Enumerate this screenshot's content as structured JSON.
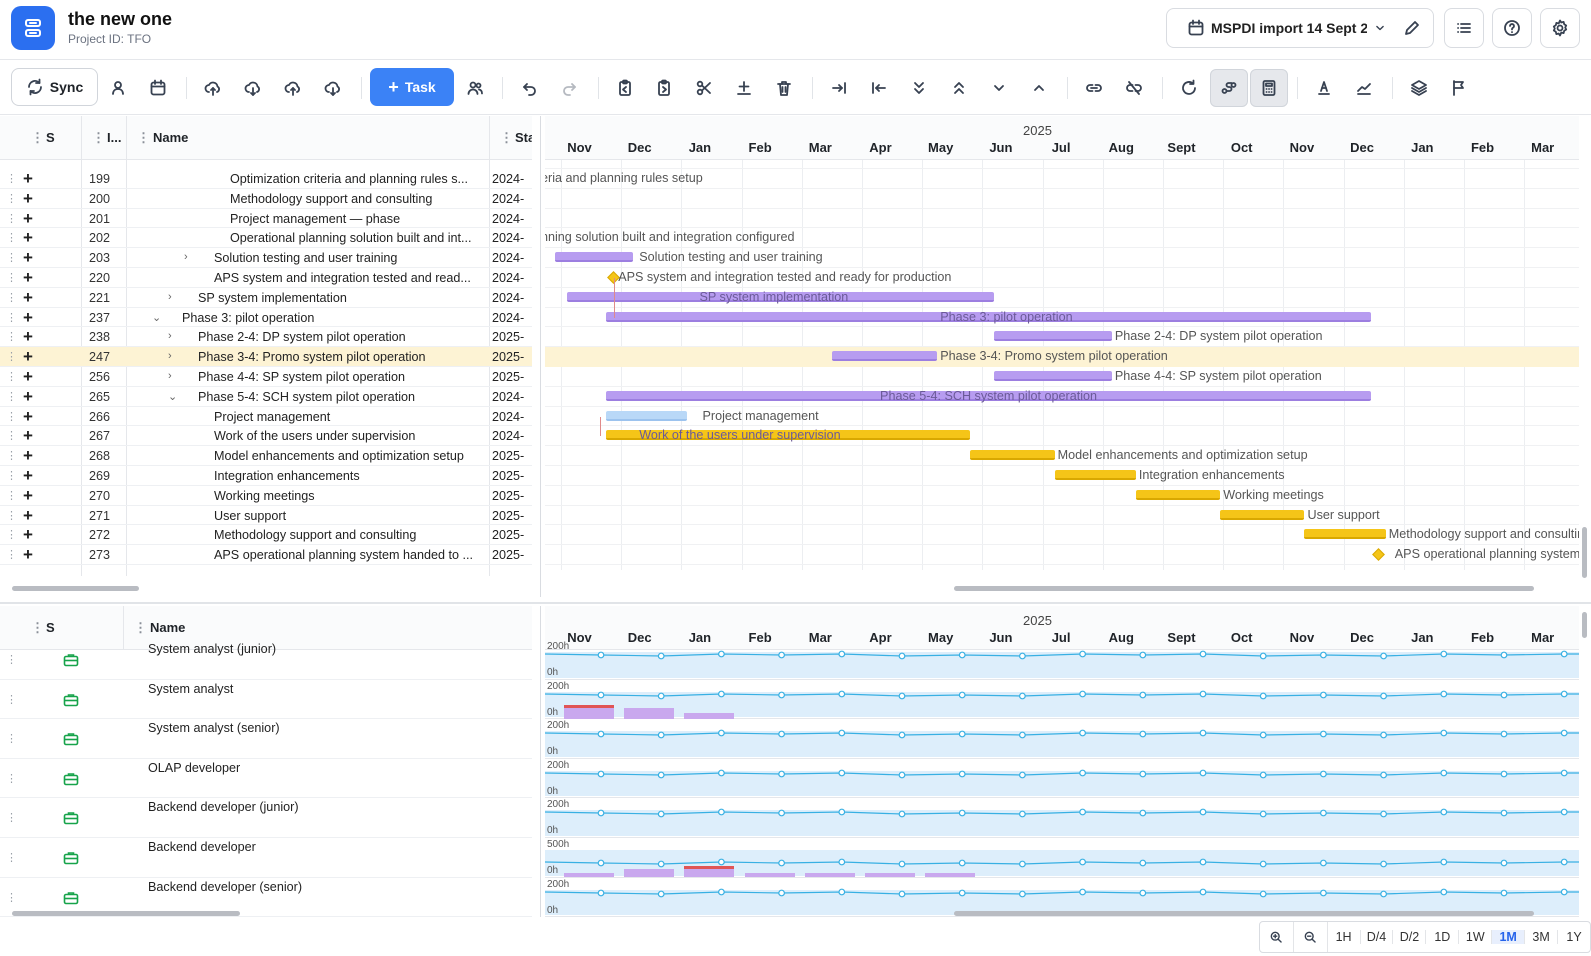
{
  "project": {
    "title": "the new one",
    "id_label": "Project ID: TFO"
  },
  "header": {
    "import_label": "MSPDI import 14 Sept 2..."
  },
  "toolbar": {
    "sync_label": "Sync",
    "task_label": "Task"
  },
  "grid": {
    "headers": {
      "status": "S",
      "id": "I...",
      "name": "Name",
      "start": "Sta"
    },
    "rows": [
      {
        "id": "199",
        "name": "Optimization criteria and planning rules s...",
        "start": "2024-",
        "indent": 3,
        "chev": ""
      },
      {
        "id": "200",
        "name": "Methodology support and consulting",
        "start": "2024-",
        "indent": 3,
        "chev": ""
      },
      {
        "id": "201",
        "name": "Project management — phase",
        "start": "2024-",
        "indent": 3,
        "chev": ""
      },
      {
        "id": "202",
        "name": "Operational planning solution built and int...",
        "start": "2024-",
        "indent": 3,
        "chev": ""
      },
      {
        "id": "203",
        "name": "Solution testing and user training",
        "start": "2024-",
        "indent": 2,
        "chev": "›"
      },
      {
        "id": "220",
        "name": "APS system and integration tested and read...",
        "start": "2024-",
        "indent": 2,
        "chev": ""
      },
      {
        "id": "221",
        "name": "SP system implementation",
        "start": "2024-",
        "indent": 1,
        "chev": "›"
      },
      {
        "id": "237",
        "name": "Phase 3: pilot operation",
        "start": "2024-",
        "indent": 0,
        "chev": "⌄"
      },
      {
        "id": "238",
        "name": "Phase 2-4: DP system pilot operation",
        "start": "2025-",
        "indent": 1,
        "chev": "›"
      },
      {
        "id": "247",
        "name": "Phase 3-4: Promo system pilot operation",
        "start": "2025-",
        "indent": 1,
        "chev": "›"
      },
      {
        "id": "256",
        "name": "Phase 4-4: SP system pilot operation",
        "start": "2025-",
        "indent": 1,
        "chev": "›"
      },
      {
        "id": "265",
        "name": "Phase 5-4: SCH system pilot operation",
        "start": "2024-",
        "indent": 1,
        "chev": "⌄"
      },
      {
        "id": "266",
        "name": "Project management",
        "start": "2024-",
        "indent": 2,
        "chev": ""
      },
      {
        "id": "267",
        "name": "Work of the users under supervision",
        "start": "2024-",
        "indent": 2,
        "chev": ""
      },
      {
        "id": "268",
        "name": "Model enhancements and optimization setup",
        "start": "2025-",
        "indent": 2,
        "chev": ""
      },
      {
        "id": "269",
        "name": "Integration enhancements",
        "start": "2025-",
        "indent": 2,
        "chev": ""
      },
      {
        "id": "270",
        "name": "Working meetings",
        "start": "2025-",
        "indent": 2,
        "chev": ""
      },
      {
        "id": "271",
        "name": "User support",
        "start": "2025-",
        "indent": 2,
        "chev": ""
      },
      {
        "id": "272",
        "name": "Methodology support and consulting",
        "start": "2025-",
        "indent": 2,
        "chev": ""
      },
      {
        "id": "273",
        "name": "APS operational planning system handed to ...",
        "start": "2025-",
        "indent": 2,
        "chev": ""
      }
    ]
  },
  "timeline": {
    "year": "2025",
    "months": [
      "Nov",
      "Dec",
      "Jan",
      "Feb",
      "Mar",
      "Apr",
      "May",
      "Jun",
      "Jul",
      "Aug",
      "Sept",
      "Oct",
      "Nov",
      "Dec",
      "Jan",
      "Feb",
      "Mar"
    ],
    "labels": {
      "l199": "eria and planning rules setup",
      "l202": "nning solution built and integration configured",
      "l203": "Solution testing and user training",
      "l220": "APS system and integration tested and ready for production",
      "l221": "SP system implementation",
      "l237": "Phase 3: pilot operation",
      "l238": "Phase 2-4: DP system pilot operation",
      "l247": "Phase 3-4: Promo system pilot operation",
      "l256": "Phase 4-4: SP system pilot operation",
      "l265": "Phase 5-4: SCH system pilot operation",
      "l266": "Project management",
      "l267": "Work of the users under supervision",
      "l268": "Model enhancements and optimization setup",
      "l269": "Integration enhancements",
      "l270": "Working meetings",
      "l271": "User support",
      "l272": "Methodology support and consultin",
      "l273": "APS operational planning system h"
    }
  },
  "resources": {
    "headers": {
      "status": "S",
      "name": "Name"
    },
    "rows": [
      {
        "name": "System analyst (junior)",
        "max": "200h",
        "min": "0h"
      },
      {
        "name": "System analyst",
        "max": "200h",
        "min": "0h"
      },
      {
        "name": "System analyst (senior)",
        "max": "200h",
        "min": "0h"
      },
      {
        "name": "OLAP developer",
        "max": "200h",
        "min": "0h"
      },
      {
        "name": "Backend developer (junior)",
        "max": "200h",
        "min": "0h"
      },
      {
        "name": "Backend developer",
        "max": "500h",
        "min": "0h"
      },
      {
        "name": "Backend developer (senior)",
        "max": "200h",
        "min": "0h"
      }
    ]
  },
  "zoom": {
    "options": [
      "1H",
      "D/4",
      "D/2",
      "1D",
      "1W",
      "1M",
      "3M",
      "1Y"
    ],
    "active": "1M"
  }
}
